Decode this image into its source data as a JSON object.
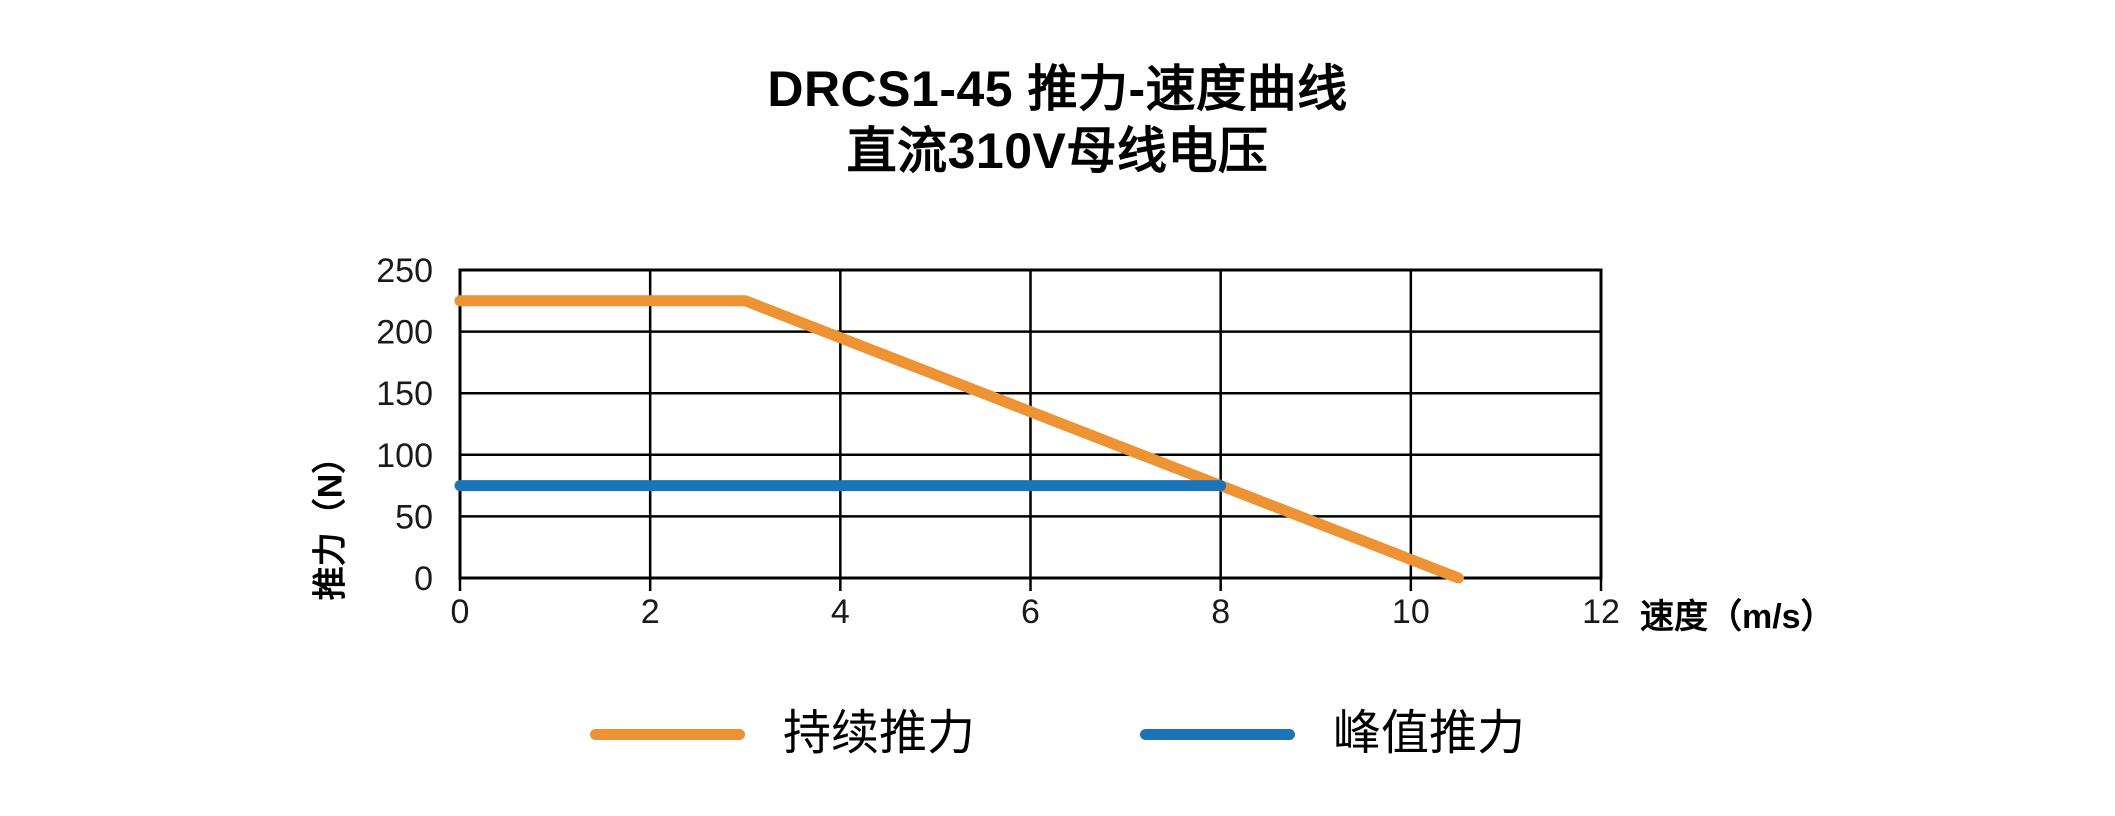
{
  "page": {
    "background": "#ffffff"
  },
  "title": {
    "line1": "DRCS1-45 推力-速度曲线",
    "line2": "直流310V母线电压"
  },
  "chart_data": {
    "type": "line",
    "title": "DRCS1-45 推力-速度曲线",
    "subtitle": "直流310V母线电压",
    "xlabel": "速度（m/s）",
    "ylabel": "推力（N）",
    "xlim": [
      0,
      12
    ],
    "ylim": [
      0,
      250
    ],
    "x_ticks": [
      0,
      2,
      4,
      6,
      8,
      10,
      12
    ],
    "y_ticks": [
      0,
      50,
      100,
      150,
      200,
      250
    ],
    "grid": true,
    "grid_color": "#000000",
    "axis_color": "#000000",
    "legend_position": "bottom",
    "series": [
      {
        "name": "持续推力",
        "key": "continuous-thrust",
        "color": "#ED9333",
        "points": [
          [
            0,
            225
          ],
          [
            3,
            225
          ],
          [
            10.5,
            0
          ]
        ]
      },
      {
        "name": "峰值推力",
        "key": "peak-thrust",
        "color": "#1B74B8",
        "points": [
          [
            0,
            75
          ],
          [
            8,
            75
          ]
        ]
      }
    ]
  },
  "legend": {
    "items": [
      {
        "label": "持续推力",
        "color": "#ED9333"
      },
      {
        "label": "峰值推力",
        "color": "#1B74B8"
      }
    ]
  }
}
